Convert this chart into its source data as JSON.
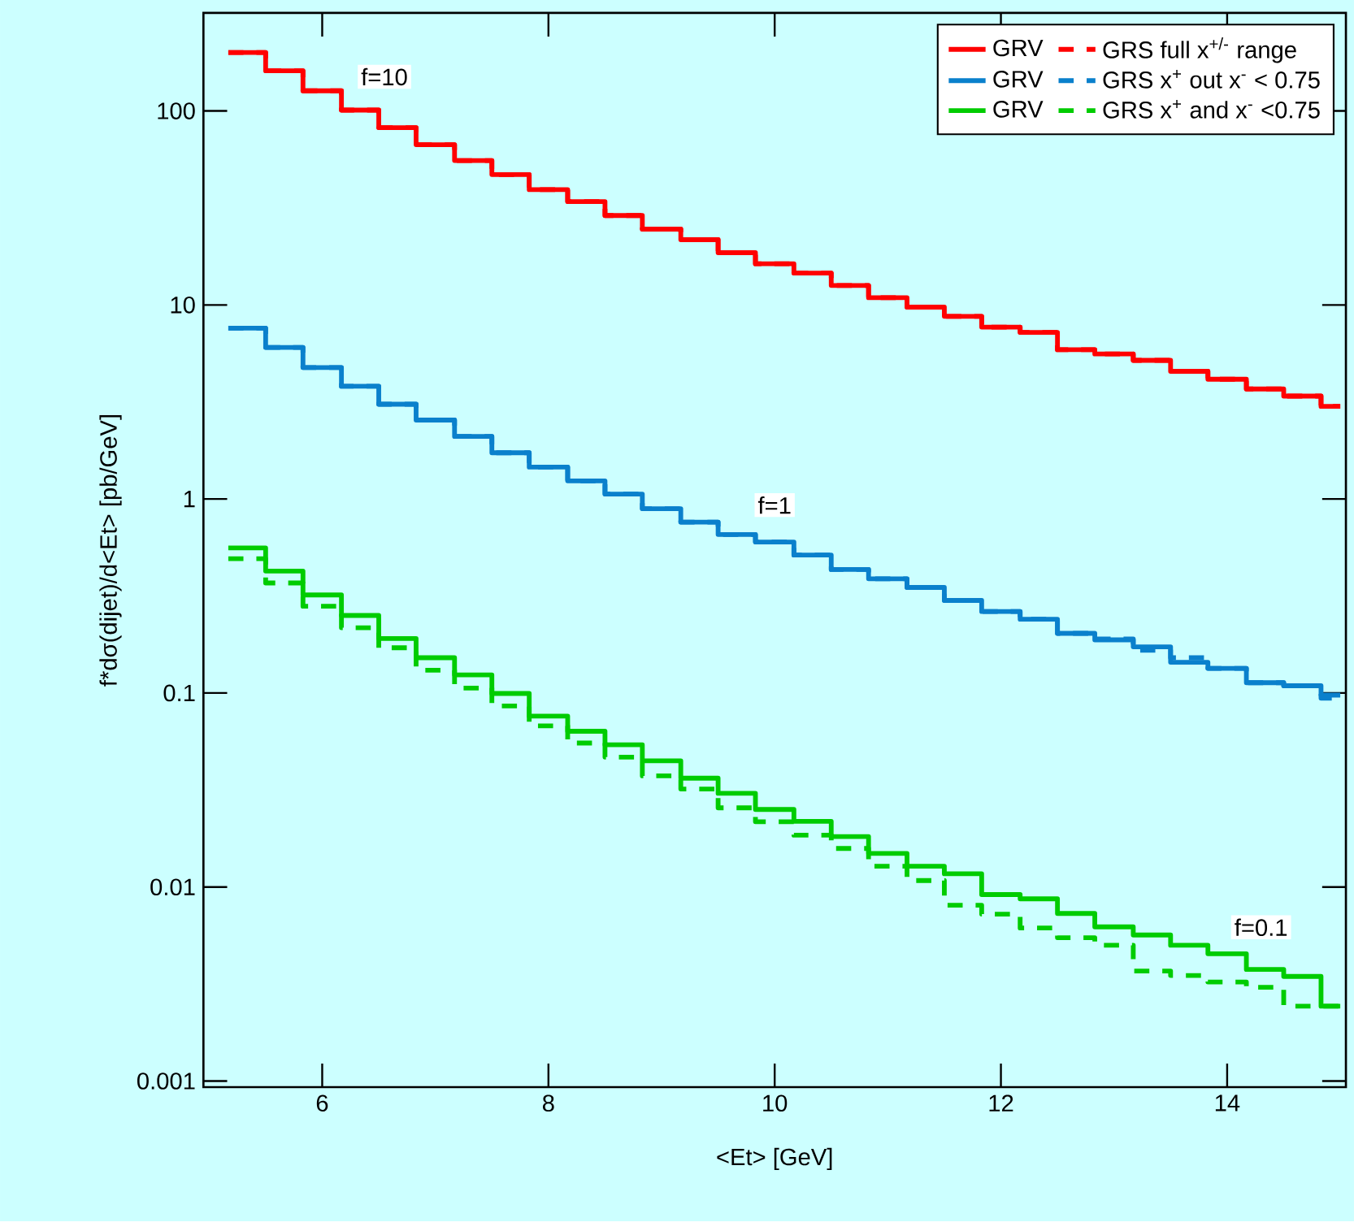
{
  "chart_data": {
    "type": "step",
    "xlabel": "<Et> [GeV]",
    "ylabel": "f*dσ(dijet)/d<Et> [pb/GeV]",
    "x": [
      5.17,
      5.5,
      5.83,
      6.17,
      6.5,
      6.83,
      7.17,
      7.5,
      7.83,
      8.17,
      8.5,
      8.83,
      9.17,
      9.5,
      9.83,
      10.17,
      10.5,
      10.83,
      11.17,
      11.5,
      11.83,
      12.17,
      12.5,
      12.83,
      13.17,
      13.5,
      13.83,
      14.17,
      14.5,
      14.83,
      15.0
    ],
    "series": [
      {
        "name": "GRV",
        "color": "#ff0000",
        "line_style": "solid",
        "values": [
          200,
          161,
          127,
          101,
          82,
          67,
          55.5,
          47,
          39.3,
          34.1,
          28.9,
          24.6,
          21.7,
          18.6,
          16.3,
          14.6,
          12.6,
          10.9,
          9.75,
          8.74,
          7.69,
          7.22,
          5.88,
          5.59,
          5.18,
          4.55,
          4.14,
          3.69,
          3.39,
          3.0,
          3.0
        ]
      },
      {
        "name": "GRS full x$^{+/-}$ range",
        "color": "#ff0000",
        "line_style": "dashed",
        "values": [
          200,
          161,
          127,
          101,
          82,
          67,
          55.5,
          47,
          39.3,
          34.1,
          28.9,
          24.6,
          21.7,
          18.6,
          16.3,
          14.6,
          12.6,
          10.9,
          9.75,
          8.74,
          7.69,
          7.22,
          5.88,
          5.59,
          5.18,
          4.55,
          4.14,
          3.69,
          3.39,
          3.0,
          3.0
        ]
      },
      {
        "name": "GRV",
        "color": "#0a80cc",
        "line_style": "solid",
        "values": [
          7.6,
          6.04,
          4.76,
          3.81,
          3.08,
          2.55,
          2.1,
          1.73,
          1.46,
          1.24,
          1.06,
          0.891,
          0.76,
          0.656,
          0.6,
          0.514,
          0.433,
          0.388,
          0.35,
          0.3,
          0.263,
          0.24,
          0.203,
          0.188,
          0.173,
          0.144,
          0.134,
          0.113,
          0.109,
          0.0975,
          0.0975
        ]
      },
      {
        "name": "GRS x$^{+}$ out x$^{-}$ < 0.75",
        "color": "#0a80cc",
        "line_style": "dashed",
        "values": [
          7.6,
          6.04,
          4.76,
          3.81,
          3.08,
          2.55,
          2.1,
          1.73,
          1.46,
          1.24,
          1.06,
          0.891,
          0.76,
          0.656,
          0.6,
          0.514,
          0.433,
          0.388,
          0.35,
          0.3,
          0.263,
          0.24,
          0.203,
          0.19,
          0.166,
          0.152,
          0.134,
          0.113,
          0.109,
          0.094,
          0.094
        ]
      },
      {
        "name": "GRV",
        "color": "#00cc00",
        "line_style": "solid",
        "values": [
          0.559,
          0.425,
          0.32,
          0.251,
          0.191,
          0.152,
          0.124,
          0.0994,
          0.076,
          0.0635,
          0.0541,
          0.0447,
          0.0364,
          0.0304,
          0.0251,
          0.0218,
          0.0182,
          0.0149,
          0.0128,
          0.0117,
          0.00914,
          0.00869,
          0.00731,
          0.00623,
          0.00566,
          0.00501,
          0.00453,
          0.00376,
          0.00346,
          0.00243,
          0.00243
        ]
      },
      {
        "name": "GRS x$^{+}$ and x$^{-}$ <0.75",
        "color": "#00cc00",
        "line_style": "dashed",
        "values": [
          0.492,
          0.369,
          0.28,
          0.217,
          0.171,
          0.131,
          0.106,
          0.0858,
          0.0677,
          0.0552,
          0.0467,
          0.0374,
          0.032,
          0.0256,
          0.0217,
          0.0185,
          0.0158,
          0.0128,
          0.0108,
          0.00805,
          0.00725,
          0.00615,
          0.00548,
          0.00501,
          0.00369,
          0.0035,
          0.00324,
          0.00304,
          0.00243,
          0.00243,
          0.00243
        ]
      }
    ],
    "xlim": [
      4.95,
      15.05
    ],
    "ylim": [
      0.00093,
      320
    ],
    "xticks": [
      6,
      8,
      10,
      12,
      14
    ],
    "yticks": [
      0.001,
      0.01,
      0.1,
      1,
      10,
      100
    ],
    "log": "y",
    "legend": "top right",
    "annotations": [
      {
        "text": "f=10",
        "x": 6.55,
        "y": 150
      },
      {
        "text": "f=1",
        "x": 10.0,
        "y": 0.93
      },
      {
        "text": "f=0.1",
        "x": 14.3,
        "y": 0.0062
      }
    ]
  }
}
